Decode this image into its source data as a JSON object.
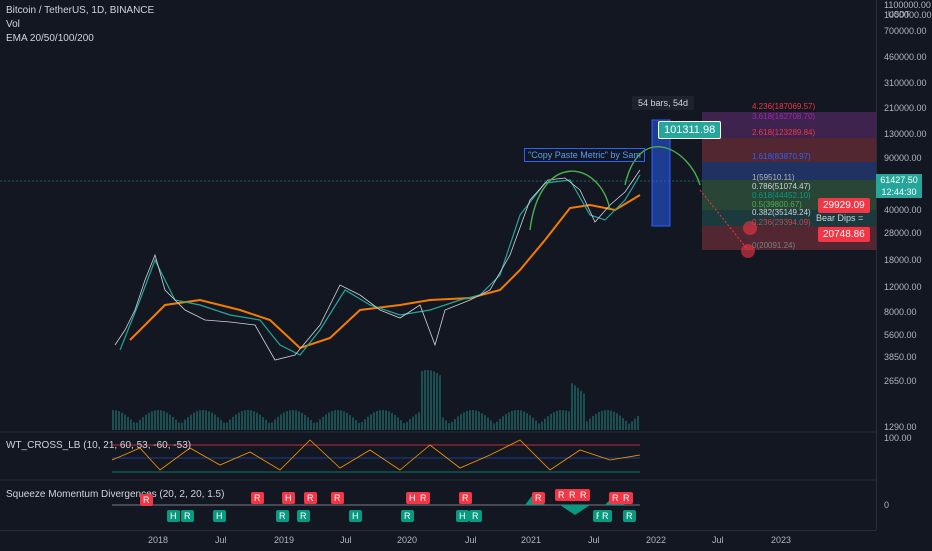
{
  "header": {
    "symbol": "Bitcoin / TetherUS, 1D, BINANCE",
    "volume": "Vol",
    "ema": "EMA 20/50/100/200"
  },
  "price_axis": {
    "currency": "USDT",
    "labels": [
      "1100000.00",
      "1000000.00",
      "700000.00",
      "460000.00",
      "310000.00",
      "210000.00",
      "130000.00",
      "90000.00",
      "60000.00",
      "40000.00",
      "28000.00",
      "18000.00",
      "12000.00",
      "8000.00",
      "5600.00",
      "3850.00",
      "2650.00",
      "1290.00"
    ],
    "current_price": "61427.50",
    "countdown": "12:44:30"
  },
  "time_axis": [
    "2018",
    "Jul",
    "2019",
    "Jul",
    "2020",
    "Jul",
    "2021",
    "Jul",
    "2022",
    "Jul",
    "2023"
  ],
  "annotations": {
    "bars_label": "54 bars, 54d",
    "target_price": "101311.98",
    "copy_paste": "\"Copy Paste Metric\" by Sam",
    "bear_dips": "Bear Dips =",
    "dip_high": "29929.09",
    "dip_low": "20748.86"
  },
  "fib_levels": [
    {
      "label": "4.236(187069.57)",
      "color": "#f23645"
    },
    {
      "label": "3.618(162708.70)",
      "color": "#9c27b0"
    },
    {
      "label": "2.618(123289.84)",
      "color": "#f23645"
    },
    {
      "label": "1.618(83870.97)",
      "color": "#2962ff"
    },
    {
      "label": "1(59510.11)",
      "color": "#b2b5be"
    },
    {
      "label": "0.786(51074.47)",
      "color": "#d1d4dc"
    },
    {
      "label": "0.618(44452.10)",
      "color": "#089981"
    },
    {
      "label": "0.5(39800.67)",
      "color": "#4caf50"
    },
    {
      "label": "0.382(35149.24)",
      "color": "#d1d4dc"
    },
    {
      "label": "0.236(29394.09)",
      "color": "#f23645"
    },
    {
      "label": "0(20091.24)",
      "color": "#787b86"
    }
  ],
  "wt_cross": {
    "title": "WT_CROSS_LB (10, 21, 60, 53, -60, -53)",
    "axis_value": "100.00"
  },
  "squeeze": {
    "title": "Squeeze Momentum Divergences (20, 2, 20, 1.5)",
    "axis_value": "0",
    "r_label": "R",
    "h_label": "H"
  },
  "colors": {
    "background": "#131722",
    "ema_fast": "#26a69a",
    "ema_slow": "#f57c00",
    "bull": "#089981",
    "bear": "#f23645"
  }
}
